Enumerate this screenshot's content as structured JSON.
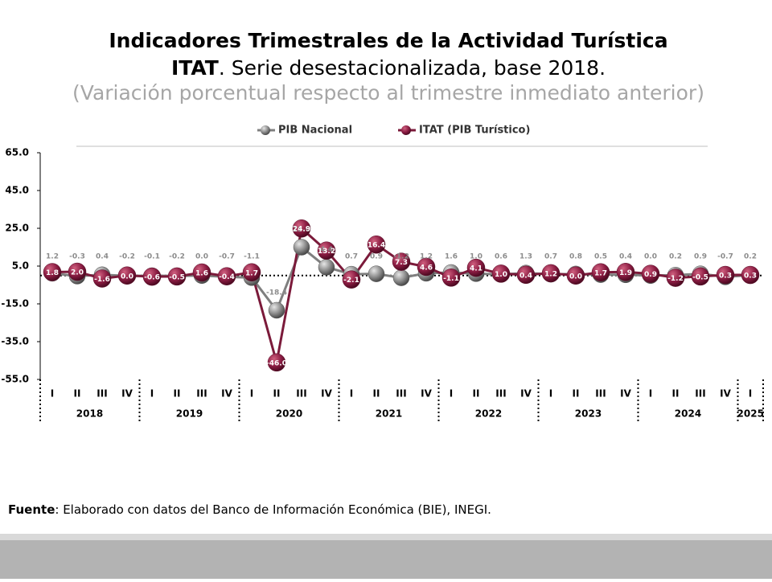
{
  "chart_data": {
    "type": "line",
    "title": "Indicadores Trimestrales de la Actividad Turística",
    "subtitle_bold": "ITAT",
    "subtitle_rest": ". Serie desestacionalizada, base 2018.",
    "subtitle2": "(Variación porcentual respecto al trimestre inmediato anterior)",
    "categories": [
      "I",
      "II",
      "III",
      "IV",
      "I",
      "II",
      "III",
      "IV",
      "I",
      "II",
      "III",
      "IV",
      "I",
      "II",
      "III",
      "IV",
      "I",
      "II",
      "III",
      "IV",
      "I",
      "II",
      "III",
      "IV",
      "I",
      "II",
      "III",
      "IV",
      "I"
    ],
    "years": [
      "2018",
      "2019",
      "2020",
      "2021",
      "2022",
      "2023",
      "2024",
      "2025"
    ],
    "ylim": [
      -55,
      65
    ],
    "yticks": [
      {
        "value": -55,
        "label": "-55.0"
      },
      {
        "value": -35,
        "label": "-35.0"
      },
      {
        "value": -15,
        "label": "-15.0"
      },
      {
        "value": 5,
        "label": "5.0"
      },
      {
        "value": 25,
        "label": "25.0"
      },
      {
        "value": 45,
        "label": "45.0"
      },
      {
        "value": 65,
        "label": "65.0"
      }
    ],
    "series": [
      {
        "name": "PIB Nacional",
        "color": "#7f7f7f",
        "values": [
          1.2,
          -0.3,
          0.4,
          -0.2,
          -0.1,
          -0.2,
          0.0,
          -0.7,
          -1.1,
          -18.4,
          15.0,
          4.4,
          0.7,
          0.9,
          -1.2,
          1.2,
          1.6,
          1.0,
          0.6,
          1.3,
          0.7,
          0.8,
          0.5,
          0.4,
          0.0,
          0.2,
          0.9,
          -0.7,
          0.2
        ],
        "value_labels": [
          "1.2",
          "-0.3",
          "0.4",
          "-0.2",
          "-0.1",
          "-0.2",
          "0.0",
          "-0.7",
          "-1.1",
          "-18.4",
          "15.0",
          "4.4",
          "0.7",
          "0.9",
          "-1.2",
          "1.2",
          "1.6",
          "1.0",
          "0.6",
          "1.3",
          "0.7",
          "0.8",
          "0.5",
          "0.4",
          "0.0",
          "0.2",
          "0.9",
          "-0.7",
          "0.2"
        ]
      },
      {
        "name": "ITAT (PIB Turístico)",
        "color": "#7b1a3a",
        "values": [
          1.8,
          2.0,
          -1.6,
          0.0,
          -0.6,
          -0.5,
          1.6,
          -0.4,
          1.7,
          -46.0,
          24.9,
          13.2,
          -2.1,
          16.4,
          7.3,
          4.6,
          -1.1,
          4.1,
          1.0,
          0.4,
          1.2,
          0.0,
          1.7,
          1.9,
          0.9,
          -1.2,
          -0.5,
          0.3,
          0.3
        ],
        "value_labels": [
          "1.8",
          "2.0",
          "-1.6",
          "0.0",
          "-0.6",
          "-0.5",
          "1.6",
          "-0.4",
          "1.7",
          "-46.0",
          "24.9",
          "13.2",
          "-2.1",
          "16.4",
          "7.3",
          "4.6",
          "-1.1",
          "4.1",
          "1.0",
          "0.4",
          "1.2",
          "0.0",
          "1.7",
          "1.9",
          "0.9",
          "-1.2",
          "-0.5",
          "0.3",
          "0.3"
        ]
      }
    ],
    "source_label": "Fuente",
    "source_text": ": Elaborado con datos del Banco de Información Económica (BIE), INEGI."
  }
}
